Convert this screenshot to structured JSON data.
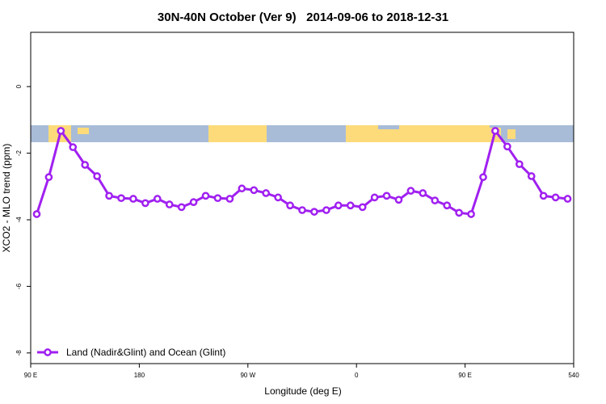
{
  "chart_data": {
    "type": "line",
    "title": "30N-40N October (Ver 9)   2014-09-06 to 2018-12-31",
    "x_label": "Longitude (deg E)",
    "y_label": "XCO2 - MLO trend (ppm)",
    "xlim": [
      90,
      540
    ],
    "xticks": [
      {
        "value": 90,
        "label": "90 E"
      },
      180,
      {
        "value": 270,
        "label": "90 W"
      },
      {
        "value": 360,
        "label": "0"
      },
      {
        "value": 450,
        "label": "90 E"
      },
      540
    ],
    "ylim": [
      -8.32,
      1.63
    ],
    "yticks": [
      -8,
      -6,
      -4,
      -2,
      0
    ],
    "legend": "bottom-left",
    "x": [
      95,
      105,
      115,
      125,
      135,
      145,
      155,
      165,
      175,
      185,
      195,
      205,
      215,
      225,
      235,
      245,
      255,
      265,
      275,
      285,
      295,
      305,
      315,
      325,
      335,
      345,
      355,
      365,
      375,
      385,
      395,
      405,
      415,
      425,
      435,
      445,
      455,
      465,
      475,
      485,
      495,
      505,
      515,
      525,
      535
    ],
    "series": [
      {
        "name": "Land (Nadir&Glint) and Ocean (Glint)",
        "color": "#a020f0",
        "values": [
          -3.83,
          -2.72,
          -1.33,
          -1.82,
          -2.35,
          -2.69,
          -3.28,
          -3.35,
          -3.37,
          -3.5,
          -3.37,
          -3.54,
          -3.62,
          -3.47,
          -3.28,
          -3.35,
          -3.37,
          -3.06,
          -3.11,
          -3.2,
          -3.33,
          -3.57,
          -3.71,
          -3.76,
          -3.71,
          -3.57,
          -3.57,
          -3.62,
          -3.33,
          -3.28,
          -3.4,
          -3.13,
          -3.2,
          -3.42,
          -3.57,
          -3.79,
          -3.83,
          -2.72,
          -1.33,
          -1.8,
          -2.33,
          -2.69,
          -3.28,
          -3.33,
          -3.37
        ]
      }
    ]
  }
}
